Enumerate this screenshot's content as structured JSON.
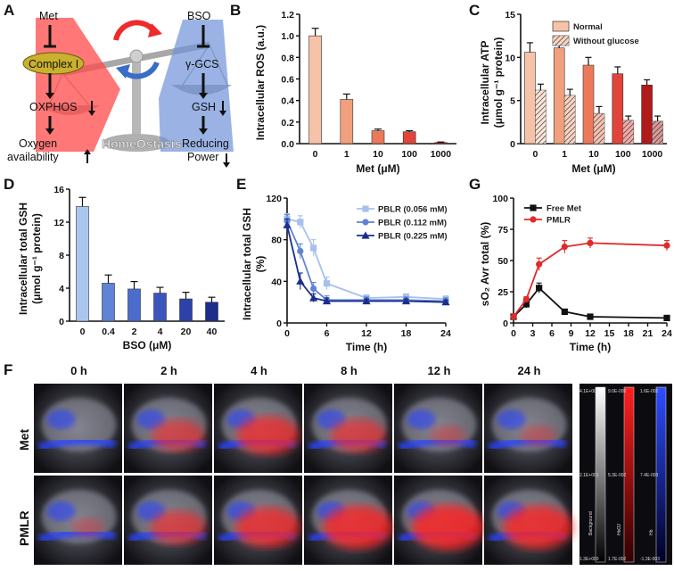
{
  "panel_labels": [
    "A",
    "B",
    "C",
    "D",
    "E",
    "F",
    "G"
  ],
  "diagram_a": {
    "met": "Met",
    "complex1": "Complex I",
    "oxphos": "OXPHOS",
    "oxygen1": "Oxygen",
    "oxygen2": "availability",
    "bso": "BSO",
    "ggcs": "γ-GCS",
    "gsh": "GSH",
    "reducing1": "Reducing",
    "reducing2": "Power",
    "homeostasis": "HomeOstasis"
  },
  "panel_f": {
    "times": [
      "0 h",
      "2 h",
      "4 h",
      "8 h",
      "12 h",
      "24 h"
    ],
    "rows": [
      "Met",
      "PMLR"
    ],
    "colorbars": [
      {
        "name": "Background",
        "top": "4.1E+001",
        "mid": "2.1E+001",
        "bot": "1.3E+000"
      },
      {
        "name": "HbO2",
        "top": "9.0E-002",
        "mid": "5.3E-002",
        "bot": "1.7E-002"
      },
      {
        "name": "Hb",
        "top": "1.6E-002",
        "mid": "7.4E-003",
        "bot": "-1.3E-003"
      }
    ]
  },
  "chart_data": [
    {
      "id": "B",
      "type": "bar",
      "categories": [
        "0",
        "1",
        "10",
        "100",
        "1000"
      ],
      "values": [
        1.0,
        0.41,
        0.12,
        0.11,
        0.01
      ],
      "errors": [
        0.07,
        0.05,
        0.015,
        0.01,
        0.005
      ],
      "colors": [
        "#f6c3a8",
        "#f0a07c",
        "#ec7a5a",
        "#e0443a",
        "#b01a1a"
      ],
      "xlabel": "Met (μM)",
      "ylabel": "Intracellular ROS (a.u.)",
      "ylim": [
        0,
        1.2
      ],
      "yticks": [
        "0.0",
        "0.2",
        "0.4",
        "0.6",
        "0.8",
        "1.0",
        "1.2"
      ]
    },
    {
      "id": "C",
      "type": "bar",
      "categories": [
        "0",
        "1",
        "10",
        "100",
        "1000"
      ],
      "series": [
        {
          "name": "Normal",
          "values": [
            10.6,
            11.1,
            9.1,
            8.1,
            6.8
          ],
          "errors": [
            1.1,
            1.2,
            0.9,
            0.8,
            0.6
          ]
        },
        {
          "name": "Without glucose",
          "values": [
            6.2,
            5.6,
            3.5,
            2.7,
            2.6
          ],
          "errors": [
            0.7,
            0.7,
            0.8,
            0.5,
            0.6
          ]
        }
      ],
      "colors": [
        "#f6c3a8",
        "#f0a07c",
        "#ec7a5a",
        "#e0443a",
        "#b01a1a"
      ],
      "xlabel": "Met (μM)",
      "ylabel1": "Intracellular ATP",
      "ylabel2": "(μmol g⁻¹ protein)",
      "ylim": [
        0,
        15
      ],
      "yticks": [
        "0",
        "5",
        "10",
        "15"
      ]
    },
    {
      "id": "D",
      "type": "bar",
      "categories": [
        "0",
        "0.4",
        "2",
        "4",
        "20",
        "40"
      ],
      "values": [
        13.9,
        4.6,
        3.9,
        3.4,
        2.7,
        2.3
      ],
      "errors": [
        1.1,
        1.0,
        0.9,
        0.7,
        0.8,
        0.6
      ],
      "colors": [
        "#a9c6ee",
        "#5f83d6",
        "#4b6ccd",
        "#3a55bd",
        "#2c42a8",
        "#1b2e8c"
      ],
      "xlabel": "BSO (μM)",
      "ylabel1": "Intracellular total GSH",
      "ylabel2": "(μmol g⁻¹ protein)",
      "ylim": [
        0,
        16
      ],
      "yticks": [
        "0",
        "4",
        "8",
        "12",
        "16"
      ]
    },
    {
      "id": "E",
      "type": "line",
      "series": [
        {
          "name": "PBLR (0.056 mM)",
          "marker": "square",
          "color": "#a8c0ec",
          "x": [
            0,
            2,
            4,
            6,
            12,
            18,
            24
          ],
          "y": [
            100,
            97,
            72,
            38,
            24,
            25,
            23
          ],
          "err": [
            5,
            6,
            8,
            6,
            3,
            3,
            3
          ]
        },
        {
          "name": "PBLR (0.112 mM)",
          "marker": "circle",
          "color": "#5f83d6",
          "x": [
            0,
            2,
            4,
            6,
            12,
            18,
            24
          ],
          "y": [
            98,
            69,
            33,
            22,
            22,
            22,
            21
          ],
          "err": [
            6,
            7,
            6,
            4,
            3,
            3,
            3
          ]
        },
        {
          "name": "PBLR (0.225 mM)",
          "marker": "triangle",
          "color": "#1b2e8c",
          "x": [
            0,
            2,
            4,
            6,
            12,
            18,
            24
          ],
          "y": [
            94,
            40,
            24,
            21,
            21,
            21,
            20
          ],
          "err": [
            6,
            8,
            4,
            3,
            2,
            2,
            2
          ]
        }
      ],
      "xlabel": "Time (h)",
      "ylabel1": "Intracellular total GSH",
      "ylabel2": "(%)",
      "xlim": [
        0,
        24
      ],
      "ylim": [
        0,
        120
      ],
      "xticks": [
        "0",
        "6",
        "12",
        "18",
        "24"
      ],
      "yticks": [
        "0",
        "40",
        "80",
        "120"
      ]
    },
    {
      "id": "G",
      "type": "line",
      "series": [
        {
          "name": "Free Met",
          "marker": "square",
          "color": "#111111",
          "x": [
            0,
            2,
            4,
            8,
            12,
            24
          ],
          "y": [
            5,
            15,
            28,
            9,
            5,
            4
          ],
          "err": [
            1,
            3,
            4,
            1,
            1,
            1
          ]
        },
        {
          "name": "PMLR",
          "marker": "circle",
          "color": "#e02a2a",
          "x": [
            0,
            2,
            4,
            8,
            12,
            24
          ],
          "y": [
            5,
            19,
            47,
            61,
            64,
            62
          ],
          "err": [
            1,
            2,
            5,
            5,
            4,
            4
          ]
        }
      ],
      "xlabel": "Time (h)",
      "ylabel": "sO₂ Avr total (%)",
      "xlim": [
        0,
        24
      ],
      "ylim": [
        0,
        100
      ],
      "xticks": [
        "0",
        "3",
        "6",
        "9",
        "12",
        "15",
        "18",
        "21",
        "24"
      ],
      "yticks": [
        "0",
        "25",
        "50",
        "75",
        "100"
      ]
    }
  ]
}
